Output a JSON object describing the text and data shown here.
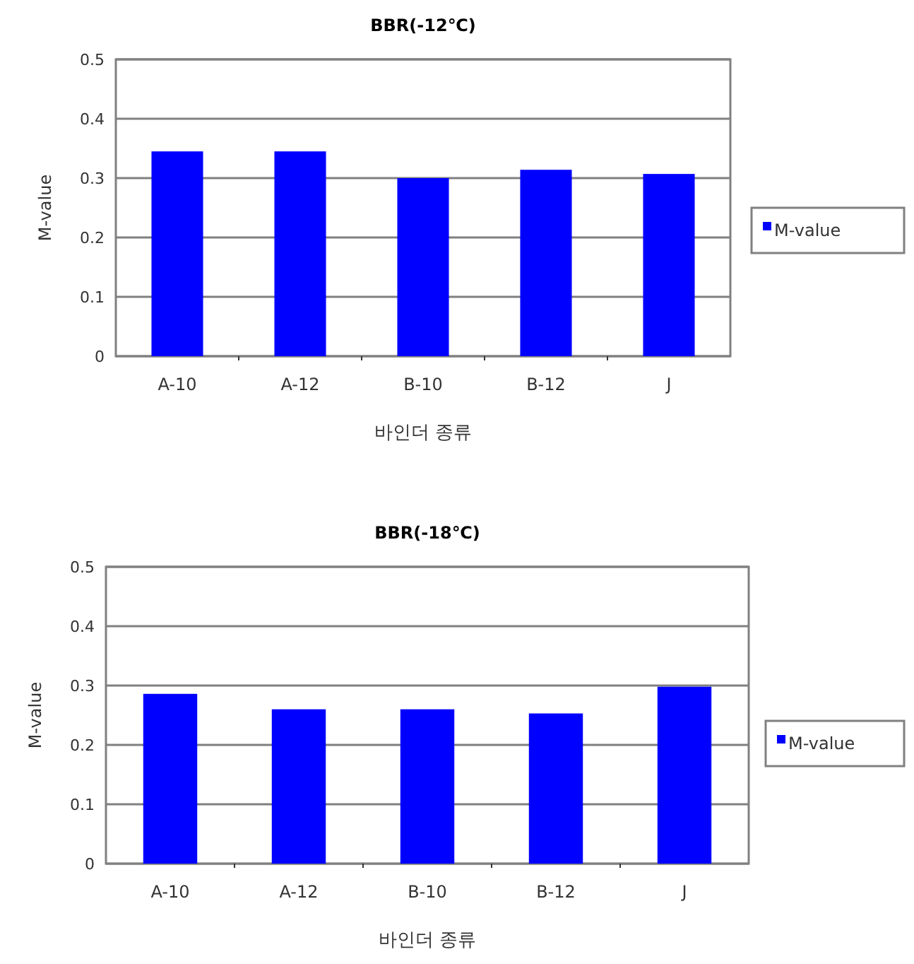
{
  "chart_data": [
    {
      "type": "bar",
      "title": "BBR(-12℃)",
      "xlabel": "바인더 종류",
      "ylabel": "M-value",
      "categories": [
        "A-10",
        "A-12",
        "B-10",
        "B-12",
        "J"
      ],
      "series": [
        {
          "name": "M-value",
          "color": "#0000ff",
          "values": [
            0.345,
            0.345,
            0.3,
            0.314,
            0.307
          ]
        }
      ],
      "ylim": [
        0,
        0.5
      ],
      "yticks": [
        0,
        0.1,
        0.2,
        0.3,
        0.4,
        0.5
      ],
      "grid": "y",
      "legend": "right"
    },
    {
      "type": "bar",
      "title": "BBR(-18℃)",
      "xlabel": "바인더 종류",
      "ylabel": "M-value",
      "categories": [
        "A-10",
        "A-12",
        "B-10",
        "B-12",
        "J"
      ],
      "series": [
        {
          "name": "M-value",
          "color": "#0000ff",
          "values": [
            0.286,
            0.26,
            0.26,
            0.253,
            0.298
          ]
        }
      ],
      "ylim": [
        0,
        0.5
      ],
      "yticks": [
        0,
        0.1,
        0.2,
        0.3,
        0.4,
        0.5
      ],
      "grid": "y",
      "legend": "right"
    }
  ]
}
